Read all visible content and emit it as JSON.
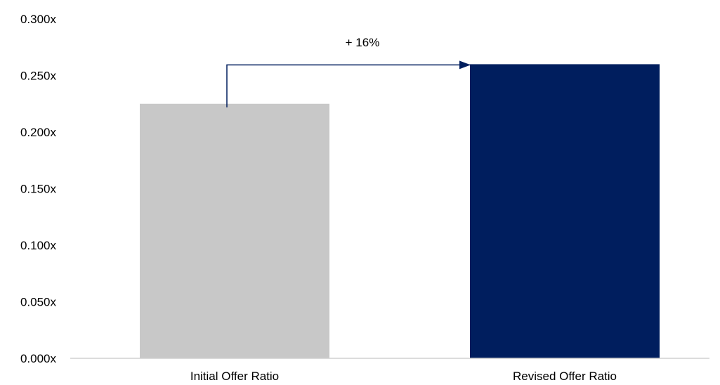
{
  "chart_data": {
    "type": "bar",
    "categories": [
      "Initial Offer Ratio",
      "Revised Offer Ratio"
    ],
    "values": [
      0.225,
      0.26
    ],
    "bar_colors": [
      "#c8c8c8",
      "#001e5e"
    ],
    "ylim": [
      0,
      0.3
    ],
    "yticks": [
      0,
      0.05,
      0.1,
      0.15,
      0.2,
      0.25,
      0.3
    ],
    "ytick_labels": [
      "0.000x",
      "0.050x",
      "0.100x",
      "0.150x",
      "0.200x",
      "0.250x",
      "0.300x"
    ],
    "grid": false,
    "legend": "none",
    "annotations": [
      {
        "type": "arrow",
        "from_category": "Initial Offer Ratio",
        "to_category": "Revised Offer Ratio",
        "label": "+ 16%",
        "color": "#001e5e"
      }
    ]
  }
}
